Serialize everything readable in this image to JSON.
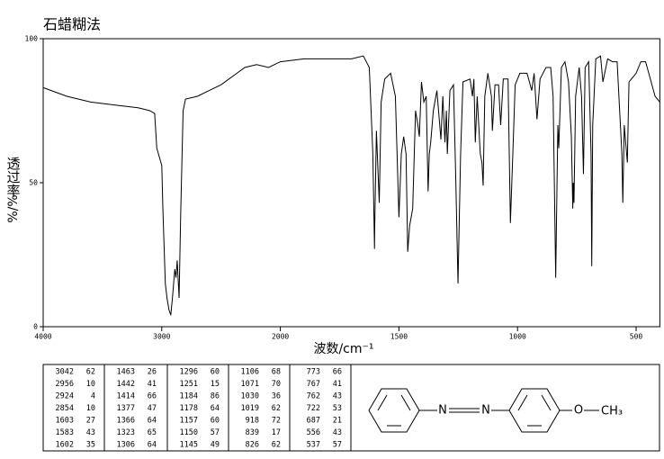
{
  "chart_data": {
    "type": "line",
    "title": "石蜡糊法",
    "ylabel": [
      "透过率",
      "%/%"
    ],
    "xlabel": "波数/cm⁻¹",
    "xlim": [
      4000,
      400
    ],
    "xticks": [
      4000,
      3000,
      2000,
      1500,
      1000,
      500
    ],
    "ylim": [
      0,
      100
    ],
    "yticks": [
      0,
      50,
      100
    ],
    "color": "#000000",
    "x": [
      4000,
      3800,
      3600,
      3400,
      3200,
      3100,
      3060,
      3042,
      3000,
      2990,
      2970,
      2956,
      2940,
      2924,
      2910,
      2890,
      2880,
      2870,
      2860,
      2854,
      2840,
      2820,
      2800,
      2700,
      2600,
      2500,
      2400,
      2300,
      2200,
      2100,
      2000,
      1900,
      1800,
      1700,
      1650,
      1625,
      1610,
      1603,
      1602,
      1595,
      1583,
      1575,
      1560,
      1535,
      1515,
      1500,
      1490,
      1480,
      1470,
      1463,
      1455,
      1442,
      1430,
      1420,
      1414,
      1405,
      1395,
      1385,
      1377,
      1372,
      1366,
      1355,
      1340,
      1323,
      1315,
      1306,
      1300,
      1296,
      1285,
      1270,
      1260,
      1251,
      1240,
      1230,
      1200,
      1190,
      1184,
      1178,
      1170,
      1157,
      1150,
      1145,
      1138,
      1125,
      1110,
      1106,
      1095,
      1080,
      1071,
      1060,
      1040,
      1030,
      1019,
      1010,
      990,
      960,
      940,
      930,
      918,
      905,
      880,
      860,
      850,
      839,
      830,
      826,
      815,
      800,
      785,
      773,
      767,
      765,
      762,
      755,
      740,
      730,
      722,
      715,
      700,
      690,
      687,
      683,
      670,
      650,
      640,
      620,
      600,
      580,
      560,
      556,
      550,
      540,
      537,
      530,
      520,
      500,
      480,
      460,
      440,
      420,
      400
    ],
    "values": [
      83,
      80,
      78,
      77,
      76,
      75,
      74,
      62,
      56,
      40,
      15,
      10,
      6,
      4,
      10,
      20,
      17,
      23,
      15,
      10,
      40,
      75,
      79,
      80,
      82,
      84,
      87,
      90,
      91,
      90,
      92,
      93,
      93,
      93,
      94,
      90,
      60,
      27,
      35,
      68,
      43,
      78,
      86,
      88,
      80,
      38,
      60,
      66,
      60,
      26,
      35,
      41,
      75,
      70,
      66,
      85,
      78,
      80,
      47,
      60,
      64,
      75,
      82,
      65,
      80,
      64,
      75,
      60,
      82,
      84,
      50,
      15,
      60,
      85,
      86,
      80,
      86,
      64,
      80,
      60,
      57,
      49,
      80,
      88,
      80,
      68,
      84,
      84,
      70,
      86,
      86,
      36,
      62,
      84,
      88,
      88,
      82,
      88,
      72,
      86,
      90,
      90,
      80,
      17,
      70,
      62,
      90,
      92,
      85,
      66,
      41,
      50,
      43,
      80,
      90,
      80,
      53,
      90,
      92,
      60,
      21,
      70,
      93,
      94,
      85,
      93,
      92,
      92,
      60,
      43,
      70,
      60,
      57,
      85,
      86,
      88,
      92,
      92,
      86,
      80,
      78
    ]
  },
  "peak_table": [
    [
      [
        3042,
        62
      ],
      [
        2956,
        10
      ],
      [
        2924,
        4
      ],
      [
        2854,
        10
      ],
      [
        1603,
        27
      ],
      [
        1583,
        43
      ],
      [
        1602,
        35
      ]
    ],
    [
      [
        1463,
        26
      ],
      [
        1442,
        41
      ],
      [
        1414,
        66
      ],
      [
        1377,
        47
      ],
      [
        1366,
        64
      ],
      [
        1323,
        65
      ],
      [
        1306,
        64
      ]
    ],
    [
      [
        1296,
        60
      ],
      [
        1251,
        15
      ],
      [
        1184,
        86
      ],
      [
        1178,
        64
      ],
      [
        1157,
        60
      ],
      [
        1150,
        57
      ],
      [
        1145,
        49
      ]
    ],
    [
      [
        1106,
        68
      ],
      [
        1071,
        70
      ],
      [
        1030,
        36
      ],
      [
        1019,
        62
      ],
      [
        918,
        72
      ],
      [
        839,
        17
      ],
      [
        826,
        62
      ]
    ],
    [
      [
        773,
        66
      ],
      [
        767,
        41
      ],
      [
        762,
        43
      ],
      [
        722,
        53
      ],
      [
        687,
        21
      ],
      [
        556,
        43
      ],
      [
        537,
        57
      ]
    ]
  ],
  "structure": {
    "atoms": [
      "N",
      "N",
      "O",
      "CH₃"
    ]
  }
}
